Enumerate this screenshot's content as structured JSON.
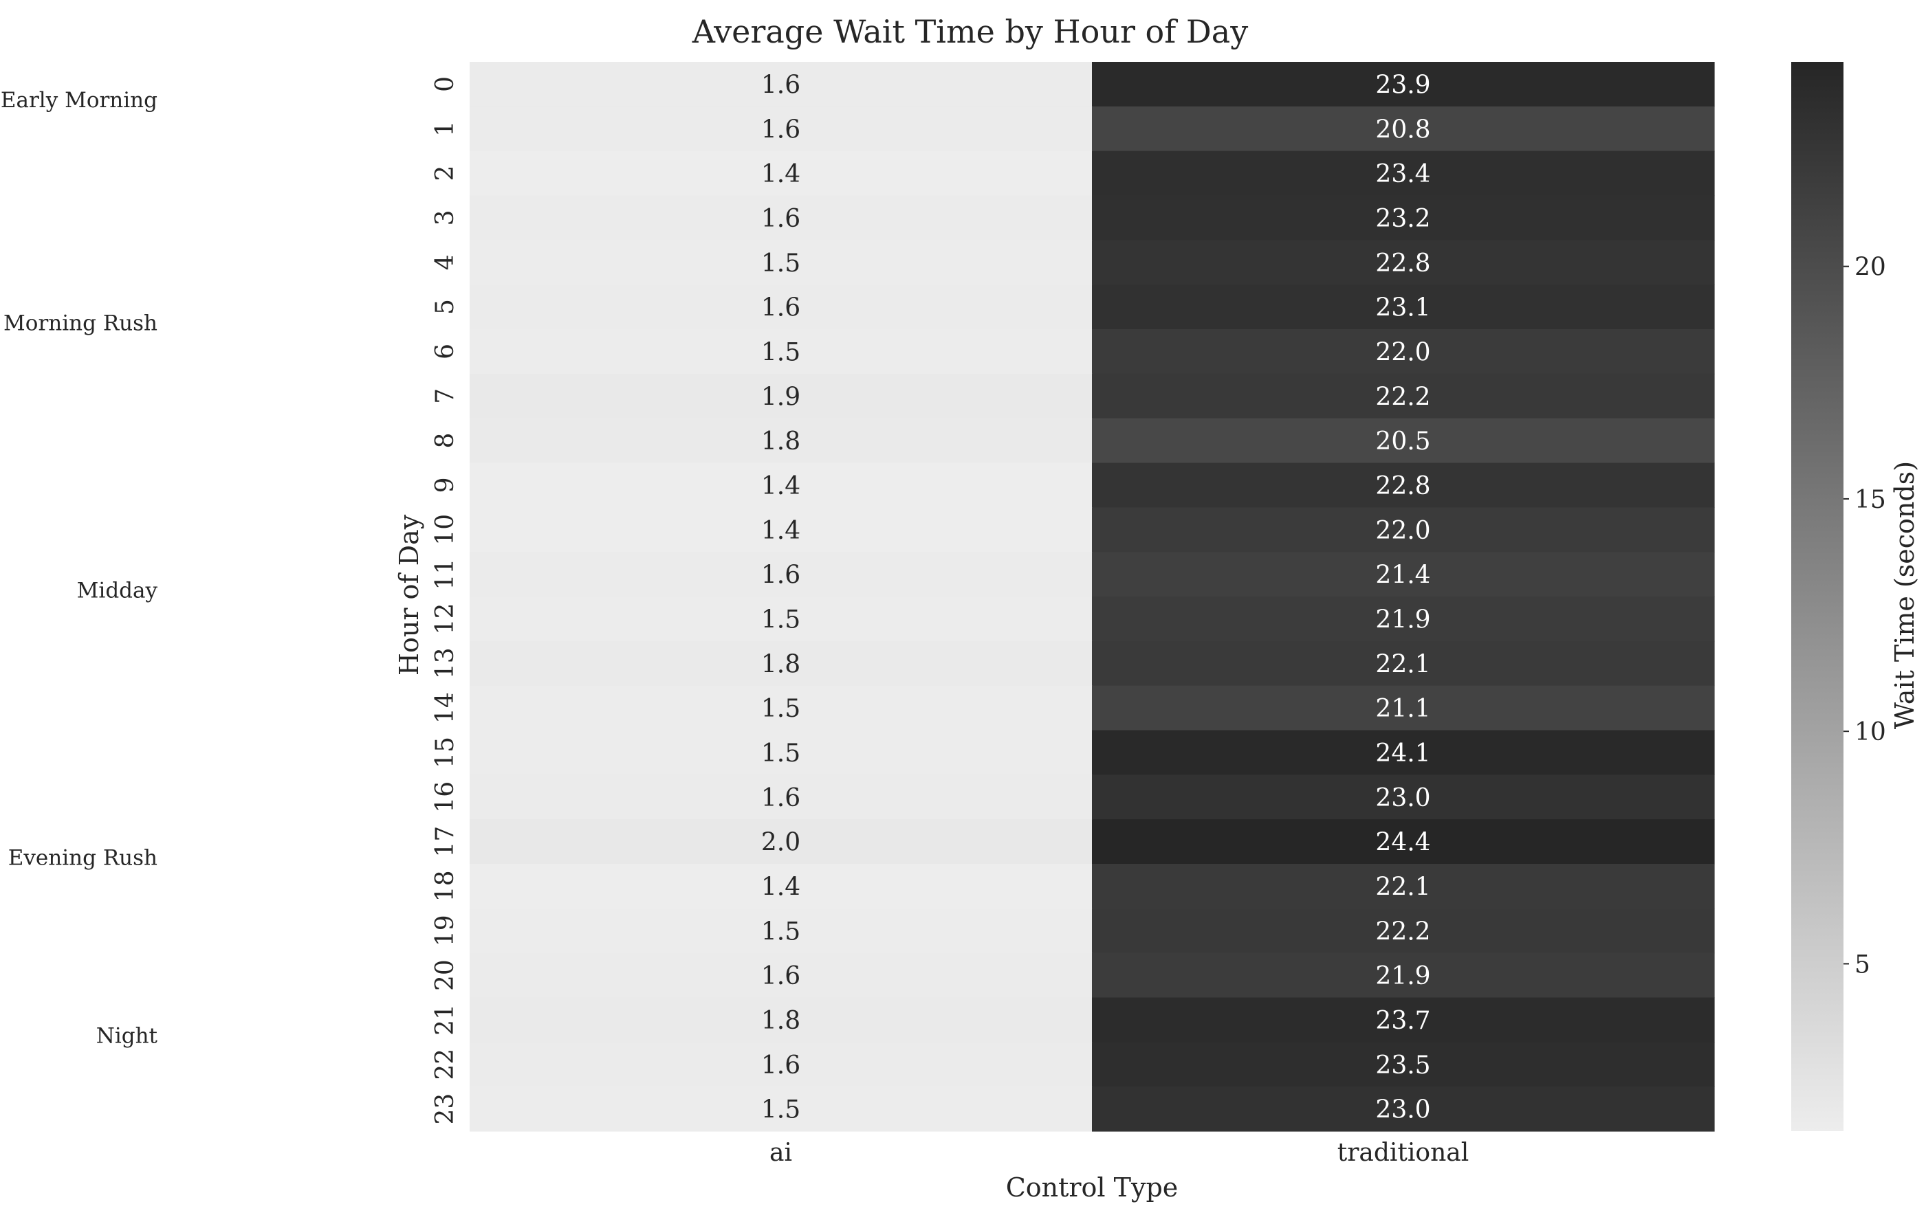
{
  "chart_data": {
    "type": "heatmap",
    "title": "Average Wait Time by Hour of Day",
    "xlabel": "Control Type",
    "ylabel": "Hour of Day",
    "columns": [
      "ai",
      "traditional"
    ],
    "rows": [
      "0",
      "1",
      "2",
      "3",
      "4",
      "5",
      "6",
      "7",
      "8",
      "9",
      "10",
      "11",
      "12",
      "13",
      "14",
      "15",
      "16",
      "17",
      "18",
      "19",
      "20",
      "21",
      "22",
      "23"
    ],
    "values": [
      [
        1.6,
        23.9
      ],
      [
        1.6,
        20.8
      ],
      [
        1.4,
        23.4
      ],
      [
        1.6,
        23.2
      ],
      [
        1.5,
        22.8
      ],
      [
        1.6,
        23.1
      ],
      [
        1.5,
        22.0
      ],
      [
        1.9,
        22.2
      ],
      [
        1.8,
        20.5
      ],
      [
        1.4,
        22.8
      ],
      [
        1.4,
        22.0
      ],
      [
        1.6,
        21.4
      ],
      [
        1.5,
        21.9
      ],
      [
        1.8,
        22.1
      ],
      [
        1.5,
        21.1
      ],
      [
        1.5,
        24.1
      ],
      [
        1.6,
        23.0
      ],
      [
        2.0,
        24.4
      ],
      [
        1.4,
        22.1
      ],
      [
        1.5,
        22.2
      ],
      [
        1.6,
        21.9
      ],
      [
        1.8,
        23.7
      ],
      [
        1.6,
        23.5
      ],
      [
        1.5,
        23.0
      ]
    ],
    "row_groups": [
      {
        "label": "Early Morning",
        "center_hour": 0.35
      },
      {
        "label": "Morning Rush",
        "center_hour": 5.35
      },
      {
        "label": "Midday",
        "center_hour": 11.35
      },
      {
        "label": "Evening Rush",
        "center_hour": 17.35
      },
      {
        "label": "Night",
        "center_hour": 21.35
      }
    ],
    "colorbar": {
      "label": "Wait Time (seconds)",
      "range": [
        1.4,
        24.4
      ],
      "ticks": [
        5,
        10,
        15,
        20
      ]
    },
    "colormap": {
      "low": "#ededed",
      "high": "#262626"
    },
    "annotation_colors": {
      "light_text": "#ffffff",
      "dark_text": "#262626"
    },
    "grid": false,
    "legend": "colorbar-right"
  }
}
